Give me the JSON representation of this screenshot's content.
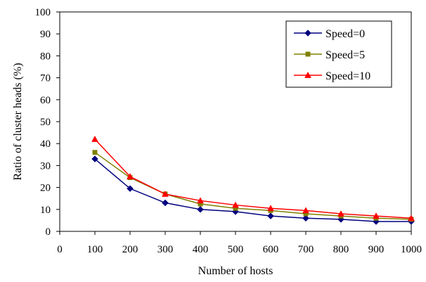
{
  "chart_data": {
    "type": "line",
    "title": "",
    "xlabel": "Number of  hosts",
    "ylabel": "Ratio of cluster heads (%)",
    "x": [
      100,
      200,
      300,
      400,
      500,
      600,
      700,
      800,
      900,
      1000
    ],
    "xlim": [
      0,
      1000
    ],
    "ylim": [
      0,
      100
    ],
    "xticks": [
      "0",
      "100",
      "200",
      "300",
      "400",
      "500",
      "600",
      "700",
      "800",
      "900",
      "1000"
    ],
    "yticks": [
      "0",
      "10",
      "20",
      "30",
      "40",
      "50",
      "60",
      "70",
      "80",
      "90",
      "100"
    ],
    "grid": false,
    "legend_position": "top-right",
    "series": [
      {
        "name": "Speed=0",
        "color": "#000080",
        "marker": "diamond",
        "values": [
          33,
          19.5,
          13,
          10,
          9,
          7,
          6,
          5.5,
          4.5,
          4.5
        ]
      },
      {
        "name": "Speed=5",
        "color": "#808000",
        "marker": "square",
        "values": [
          36,
          24.5,
          17,
          12.5,
          10.5,
          9.5,
          8,
          7,
          6,
          5.5
        ]
      },
      {
        "name": "Speed=10",
        "color": "#ff0000",
        "marker": "triangle",
        "values": [
          42,
          25,
          17,
          14,
          12,
          10.5,
          9.5,
          8,
          7,
          6
        ]
      }
    ]
  }
}
